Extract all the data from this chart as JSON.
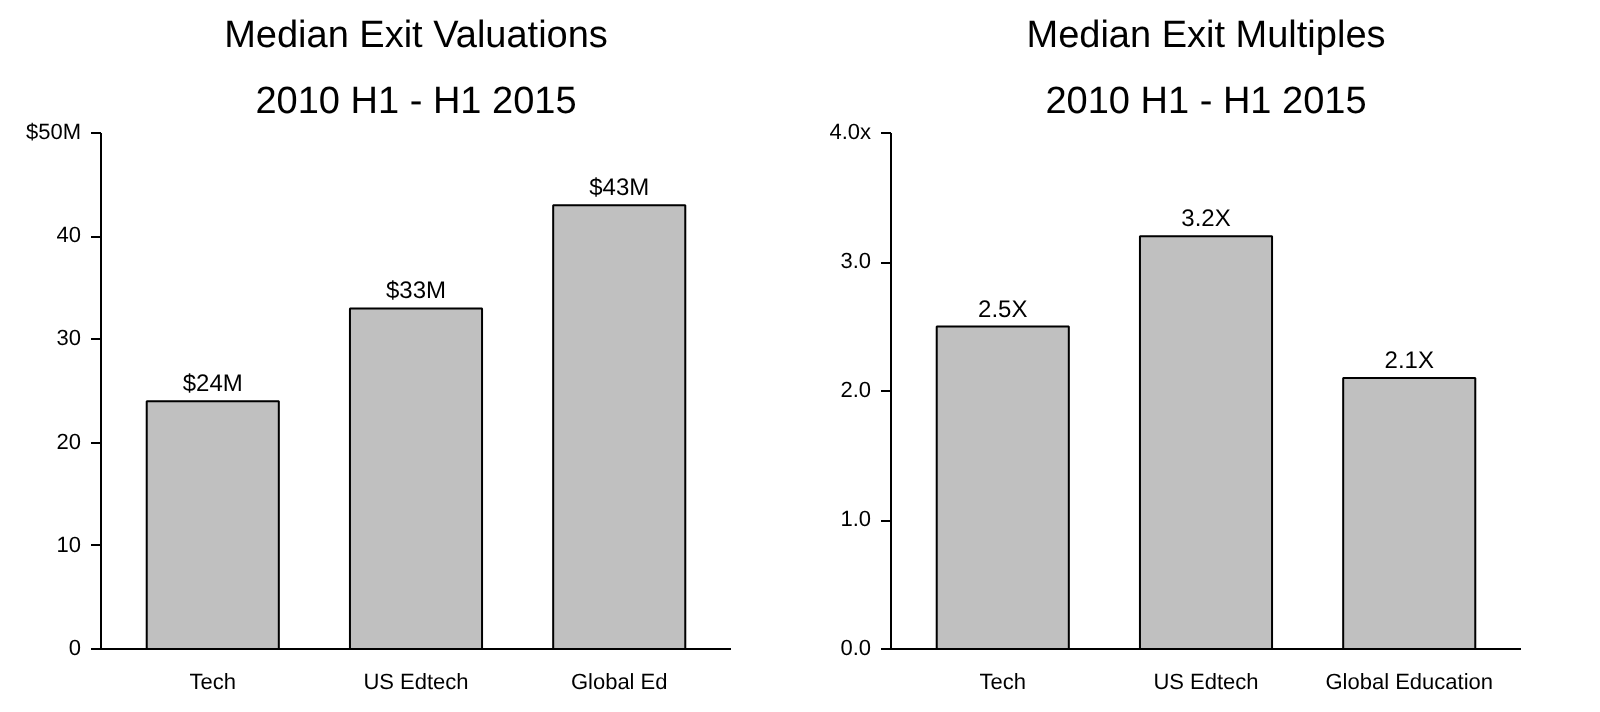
{
  "chart_data": [
    {
      "type": "bar",
      "title": "Median Exit Valuations",
      "subtitle": "2010 H1 - H1 2015",
      "categories": [
        "Tech",
        "US Edtech",
        "Global Ed"
      ],
      "values": [
        24,
        33,
        43
      ],
      "color": "#c0c0c0",
      "value_labels": [
        "$24M",
        "$33M",
        "$43M"
      ],
      "ylim": [
        0,
        50
      ],
      "yticks": [
        0,
        10,
        20,
        30,
        40,
        {
          "value": 50,
          "label": "$50M"
        }
      ],
      "grid": false
    },
    {
      "type": "bar",
      "title": "Median Exit Multiples",
      "subtitle": "2010 H1 - H1 2015",
      "categories": [
        "Tech",
        "US Edtech",
        "Global Education"
      ],
      "values": [
        2.5,
        3.2,
        2.1
      ],
      "color": "#c0c0c0",
      "value_labels": [
        "2.5X",
        "3.2X",
        "2.1X"
      ],
      "ylim": [
        0,
        4
      ],
      "yticks": [
        {
          "value": 0,
          "label": "0.0"
        },
        {
          "value": 1,
          "label": "1.0"
        },
        {
          "value": 2,
          "label": "2.0"
        },
        {
          "value": 3,
          "label": "3.0"
        },
        {
          "value": 4,
          "label": "4.0x"
        }
      ],
      "grid": false
    }
  ]
}
